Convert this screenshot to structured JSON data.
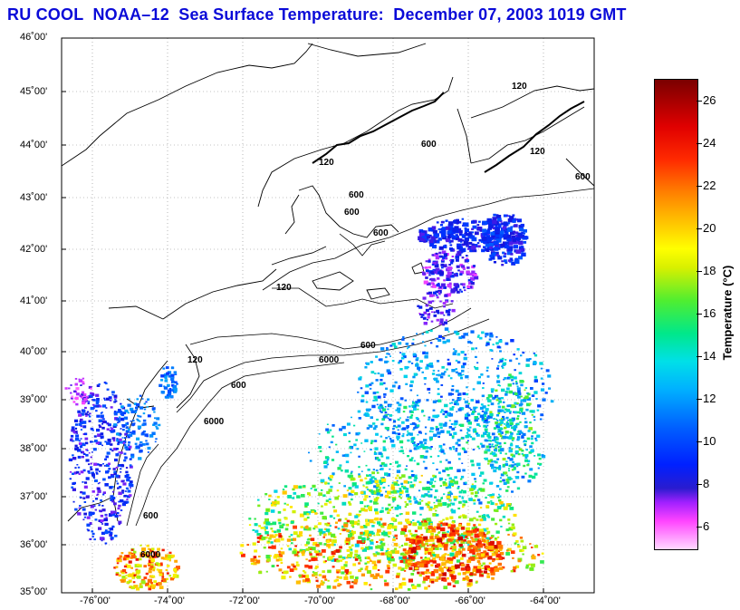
{
  "header": {
    "title": "RU COOL  NOAA–12  Sea Surface Temperature:  December 07, 2003 1019 GMT"
  },
  "map": {
    "lat_labels": [
      "46˚00'",
      "45˚00'",
      "44˚00'",
      "43˚00'",
      "42˚00'",
      "41˚00'",
      "40˚00'",
      "39˚00'",
      "38˚00'",
      "37˚00'",
      "36˚00'",
      "35˚00'"
    ],
    "lon_labels": [
      "-76˚00'",
      "-74˚00'",
      "-72˚00'",
      "-70˚00'",
      "-68˚00'",
      "-66˚00'",
      "-64˚00'"
    ],
    "contour_labels": [
      "120",
      "600",
      "6000"
    ],
    "grid": true
  },
  "colorbar": {
    "title": "Temperature (°C)",
    "ticks": [
      "26",
      "24",
      "22",
      "20",
      "18",
      "16",
      "14",
      "12",
      "10",
      "8",
      "6"
    ],
    "min": 5,
    "max": 27
  },
  "colors": {
    "title": "#0a0ad8"
  }
}
